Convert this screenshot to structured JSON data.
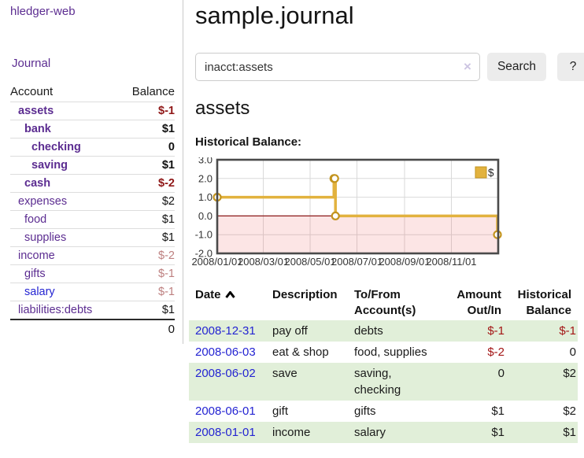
{
  "app": {
    "brand": "hledger-web"
  },
  "nav": {
    "journal_label": "Journal"
  },
  "sidebar": {
    "columns": {
      "account": "Account",
      "balance": "Balance"
    },
    "accounts": [
      {
        "name": "assets",
        "indent": 1,
        "bold": true,
        "balance": "$-1",
        "balance_class": "neg-strong",
        "link_class": ""
      },
      {
        "name": "bank",
        "indent": 2,
        "bold": true,
        "balance": "$1",
        "balance_class": "",
        "link_class": ""
      },
      {
        "name": "checking",
        "indent": 3,
        "bold": true,
        "balance": "0",
        "balance_class": "",
        "link_class": ""
      },
      {
        "name": "saving",
        "indent": 3,
        "bold": true,
        "balance": "$1",
        "balance_class": "",
        "link_class": ""
      },
      {
        "name": "cash",
        "indent": 2,
        "bold": true,
        "balance": "$-2",
        "balance_class": "neg-strong",
        "link_class": ""
      },
      {
        "name": "expenses",
        "indent": 1,
        "bold": false,
        "balance": "$2",
        "balance_class": "",
        "link_class": ""
      },
      {
        "name": "food",
        "indent": 2,
        "bold": false,
        "balance": "$1",
        "balance_class": "",
        "link_class": ""
      },
      {
        "name": "supplies",
        "indent": 2,
        "bold": false,
        "balance": "$1",
        "balance_class": "",
        "link_class": ""
      },
      {
        "name": "income",
        "indent": 1,
        "bold": false,
        "balance": "$-2",
        "balance_class": "neg-muted",
        "link_class": ""
      },
      {
        "name": "gifts",
        "indent": 2,
        "bold": false,
        "balance": "$-1",
        "balance_class": "neg-muted",
        "link_class": ""
      },
      {
        "name": "salary",
        "indent": 2,
        "bold": false,
        "balance": "$-1",
        "balance_class": "neg-muted",
        "link_class": "blue"
      },
      {
        "name": "liabilities:debts",
        "indent": 1,
        "bold": false,
        "balance": "$1",
        "balance_class": "",
        "link_class": ""
      }
    ],
    "total": "0"
  },
  "header": {
    "title": "sample.journal"
  },
  "search": {
    "value": "inacct:assets",
    "clear_icon": "×",
    "button_label": "Search",
    "help_label": "?"
  },
  "account_view": {
    "heading": "assets",
    "chart_title": "Historical Balance:"
  },
  "chart_data": {
    "type": "line",
    "step": "after",
    "title": "Historical Balance:",
    "series": [
      {
        "name": "$",
        "points": [
          {
            "date": "2008-01-01",
            "value": 1
          },
          {
            "date": "2008-06-01",
            "value": 2
          },
          {
            "date": "2008-06-02",
            "value": 2
          },
          {
            "date": "2008-06-03",
            "value": 0
          },
          {
            "date": "2008-12-31",
            "value": -1
          }
        ]
      }
    ],
    "x_range": [
      "2008-01-01",
      "2009-01-01"
    ],
    "x_ticks": [
      "2008/01/01",
      "2008/03/01",
      "2008/05/01",
      "2008/07/01",
      "2008/09/01",
      "2008/11/01"
    ],
    "y_ticks": [
      3.0,
      2.0,
      1.0,
      0.0,
      -1.0,
      -2.0
    ],
    "ylim": [
      -2,
      3
    ],
    "grid": true,
    "legend": {
      "label": "$",
      "position": "top-right"
    },
    "negative_region": true
  },
  "register": {
    "columns": [
      {
        "lines": [
          "Date"
        ],
        "align": "left",
        "sort": "asc"
      },
      {
        "lines": [
          "Description"
        ],
        "align": "left"
      },
      {
        "lines": [
          "To/From",
          "Account(s)"
        ],
        "align": "left"
      },
      {
        "lines": [
          "Amount",
          "Out/In"
        ],
        "align": "right"
      },
      {
        "lines": [
          "Historical",
          "Balance"
        ],
        "align": "right"
      }
    ],
    "rows": [
      {
        "date": "2008-12-31",
        "description": "pay off",
        "accounts": "debts",
        "amount": "$-1",
        "amount_class": "neg",
        "balance": "$-1",
        "balance_class": "neg"
      },
      {
        "date": "2008-06-03",
        "description": "eat & shop",
        "accounts": "food, supplies",
        "amount": "$-2",
        "amount_class": "neg",
        "balance": "0",
        "balance_class": ""
      },
      {
        "date": "2008-06-02",
        "description": "save",
        "accounts": "saving, checking",
        "amount": "0",
        "amount_class": "",
        "balance": "$2",
        "balance_class": ""
      },
      {
        "date": "2008-06-01",
        "description": "gift",
        "accounts": "gifts",
        "amount": "$1",
        "amount_class": "",
        "balance": "$2",
        "balance_class": ""
      },
      {
        "date": "2008-01-01",
        "description": "income",
        "accounts": "salary",
        "amount": "$1",
        "amount_class": "",
        "balance": "$1",
        "balance_class": ""
      }
    ]
  },
  "colors": {
    "purple": "#5c2d91",
    "blue": "#2424d2",
    "neg": "#a31515",
    "negStrong": "#8f1717",
    "negMuted": "#bd7f7f",
    "greenRow": "#e1efd9",
    "gold": "#e2b23e",
    "goldDark": "#c3941f",
    "pinkFill": "rgba(231,70,70,0.14)",
    "zeroLine": "#8c1a1a",
    "grid": "#d9d9d9",
    "chartBorder": "#4a4a4a"
  }
}
